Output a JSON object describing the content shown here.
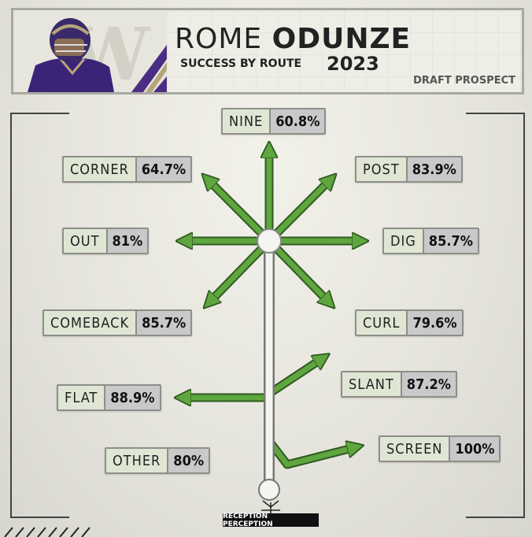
{
  "header": {
    "first_name": "ROME",
    "last_name": "ODUNZE",
    "subtitle": "SUCCESS BY ROUTE",
    "year": "2023",
    "tag": "DRAFT PROSPECT"
  },
  "routes": [
    {
      "id": "nine",
      "label": "NINE",
      "value": "60.8%"
    },
    {
      "id": "corner",
      "label": "CORNER",
      "value": "64.7%"
    },
    {
      "id": "post",
      "label": "POST",
      "value": "83.9%"
    },
    {
      "id": "out",
      "label": "OUT",
      "value": "81%"
    },
    {
      "id": "dig",
      "label": "DIG",
      "value": "85.7%"
    },
    {
      "id": "comeback",
      "label": "COMEBACK",
      "value": "85.7%"
    },
    {
      "id": "curl",
      "label": "CURL",
      "value": "79.6%"
    },
    {
      "id": "slant",
      "label": "SLANT",
      "value": "87.2%"
    },
    {
      "id": "flat",
      "label": "FLAT",
      "value": "88.9%"
    },
    {
      "id": "screen",
      "label": "SCREEN",
      "value": "100%"
    },
    {
      "id": "other",
      "label": "OTHER",
      "value": "80%"
    }
  ],
  "footer": {
    "logo_text": "RECEPTION PERCEPTION"
  },
  "colors": {
    "arrow": "#5fa63f",
    "arrow_outline": "#2f5a20",
    "purple": "#4b2e83",
    "gold": "#b7a57a"
  }
}
